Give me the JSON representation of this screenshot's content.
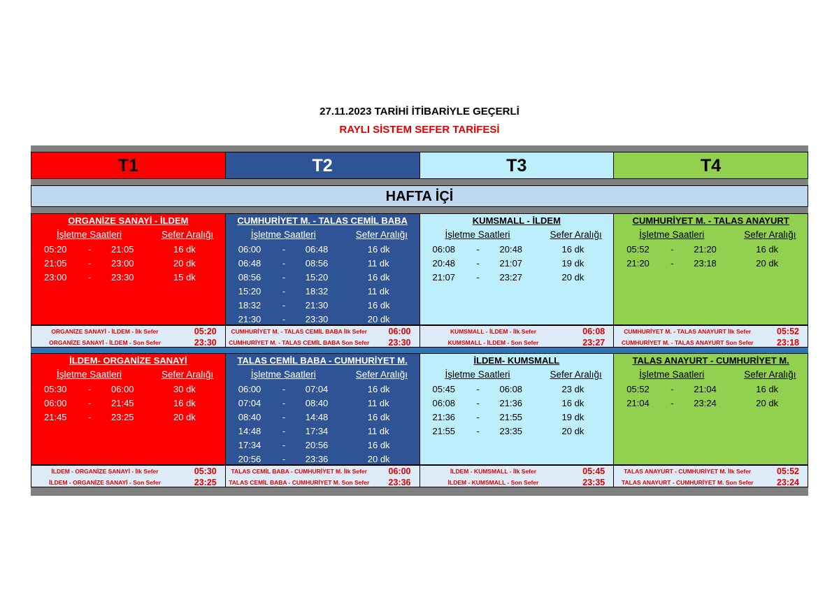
{
  "title_line1": "27.11.2023 TARİHİ İTİBARİYLE GEÇERLİ",
  "title_line2": "RAYLI SİSTEM SEFER TARİFESİ",
  "lines": [
    "T1",
    "T2",
    "T3",
    "T4"
  ],
  "line_colors": {
    "T1": "#ff0000",
    "T2": "#2f5496",
    "T3": "#bdeefc",
    "T4": "#92d050"
  },
  "day_type": "HAFTA İÇİ",
  "col_label_hours": "İşletme Saatleri",
  "col_label_interval": "Sefer Aralığı",
  "sections": [
    {
      "columns": [
        {
          "route": "ORGANİZE SANAYİ - İLDEM",
          "rows": [
            [
              "05:20",
              "21:05",
              "16 dk"
            ],
            [
              "21:05",
              "23:00",
              "20 dk"
            ],
            [
              "23:00",
              "23:30",
              "15 dk"
            ]
          ],
          "first_label": "ORGANİZE SANAYİ - İLDEM - İlk Sefer",
          "first": "05:20",
          "last_label": "ORGANİZE SANAYİ - İLDEM - Son Sefer",
          "last": "23:30"
        },
        {
          "route": "CUMHURİYET M. - TALAS CEMİL BABA",
          "rows": [
            [
              "06:00",
              "06:48",
              "16 dk"
            ],
            [
              "06:48",
              "08:56",
              "11 dk"
            ],
            [
              "08:56",
              "15:20",
              "16 dk"
            ],
            [
              "15:20",
              "18:32",
              "11 dk"
            ],
            [
              "18:32",
              "21:30",
              "16 dk"
            ],
            [
              "21:30",
              "23:30",
              "20 dk"
            ]
          ],
          "first_label": "CUMHURİYET M. - TALAS CEMİL BABA İlk Sefer",
          "first": "06:00",
          "last_label": "CUMHURİYET M. - TALAS CEMİL BABA Son Sefer",
          "last": "23:30"
        },
        {
          "route": "KUMSMALL - İLDEM",
          "rows": [
            [
              "06:08",
              "20:48",
              "16 dk"
            ],
            [
              "20:48",
              "21:07",
              "19 dk"
            ],
            [
              "21:07",
              "23:27",
              "20 dk"
            ]
          ],
          "first_label": "KUMSMALL - İLDEM - İlk Sefer",
          "first": "06:08",
          "last_label": "KUMSMALL - İLDEM - Son Sefer",
          "last": "23:27"
        },
        {
          "route": "CUMHURİYET M. - TALAS ANAYURT",
          "rows": [
            [
              "05:52",
              "21:20",
              "16 dk"
            ],
            [
              "21:20",
              "23:18",
              "20 dk"
            ]
          ],
          "first_label": "CUMHURİYET M. - TALAS ANAYURT İlk Sefer",
          "first": "05:52",
          "last_label": "CUMHURİYET M. - TALAS ANAYURT Son Sefer",
          "last": "23:18"
        }
      ]
    },
    {
      "columns": [
        {
          "route": "İLDEM- ORGANİZE SANAYİ",
          "rows": [
            [
              "05:30",
              "06:00",
              "30 dk"
            ],
            [
              "06:00",
              "21:45",
              "16 dk"
            ],
            [
              "21:45",
              "23:25",
              "20 dk"
            ]
          ],
          "first_label": "İLDEM - ORGANİZE SANAYİ - İlk Sefer",
          "first": "05:30",
          "last_label": "İLDEM - ORGANİZE SANAYİ - Son Sefer",
          "last": "23:25"
        },
        {
          "route": "TALAS CEMİL BABA - CUMHURİYET M.",
          "rows": [
            [
              "06:00",
              "07:04",
              "16 dk"
            ],
            [
              "07:04",
              "08:40",
              "11 dk"
            ],
            [
              "08:40",
              "14:48",
              "16 dk"
            ],
            [
              "14:48",
              "17:34",
              "11 dk"
            ],
            [
              "17:34",
              "20:56",
              "16 dk"
            ],
            [
              "20:56",
              "23:36",
              "20 dk"
            ]
          ],
          "first_label": "TALAS CEMİL BABA - CUMHURİYET M. İlk Sefer",
          "first": "06:00",
          "last_label": "TALAS CEMİL BABA - CUMHURİYET M. Son Sefer",
          "last": "23:36"
        },
        {
          "route": "İLDEM- KUMSMALL",
          "rows": [
            [
              "05:45",
              "06:08",
              "23 dk"
            ],
            [
              "06:08",
              "21:36",
              "16 dk"
            ],
            [
              "21:36",
              "21:55",
              "19 dk"
            ],
            [
              "21:55",
              "23:35",
              "20 dk"
            ]
          ],
          "first_label": "İLDEM - KUMSMALL - İlk Sefer",
          "first": "05:45",
          "last_label": "İLDEM - KUMSMALL - Son Sefer",
          "last": "23:35"
        },
        {
          "route": "TALAS ANAYURT - CUMHURİYET M.",
          "rows": [
            [
              "05:52",
              "21:04",
              "16 dk"
            ],
            [
              "21:04",
              "23:24",
              "20 dk"
            ]
          ],
          "first_label": "TALAS ANAYURT - CUMHURİYET M. İlk Sefer",
          "first": "05:52",
          "last_label": "TALAS ANAYURT - CUMHURİYET M. Son Sefer",
          "last": "23:24"
        }
      ]
    }
  ]
}
